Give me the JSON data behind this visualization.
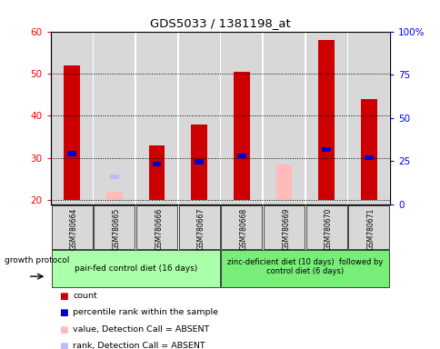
{
  "title": "GDS5033 / 1381198_at",
  "samples": [
    "GSM780664",
    "GSM780665",
    "GSM780666",
    "GSM780667",
    "GSM780668",
    "GSM780669",
    "GSM780670",
    "GSM780671"
  ],
  "count_values": [
    52,
    null,
    33,
    38,
    50.5,
    null,
    58,
    44
  ],
  "count_bottom": [
    20,
    20,
    20,
    20,
    20,
    20,
    20,
    20
  ],
  "percentile_values": [
    31,
    null,
    28.5,
    29,
    30.5,
    null,
    32,
    30
  ],
  "absent_value_values": [
    null,
    22,
    null,
    null,
    null,
    28.5,
    null,
    null
  ],
  "absent_value_bottom": [
    null,
    20,
    null,
    null,
    null,
    20,
    null,
    null
  ],
  "absent_rank_values": [
    null,
    25.5,
    null,
    null,
    null,
    null,
    null,
    null
  ],
  "ylim_left": [
    19,
    60
  ],
  "ylim_right": [
    0,
    100
  ],
  "yticks_left": [
    20,
    30,
    40,
    50,
    60
  ],
  "yticks_right": [
    0,
    25,
    50,
    75,
    100
  ],
  "ytick_labels_right": [
    "0",
    "25",
    "50",
    "75",
    "100%"
  ],
  "group1_label": "pair-fed control diet (16 days)",
  "group2_label": "zinc-deficient diet (10 days)  followed by\ncontrol diet (6 days)",
  "group_protocol_label": "growth protocol",
  "group1_indices": [
    0,
    1,
    2,
    3
  ],
  "group2_indices": [
    4,
    5,
    6,
    7
  ],
  "group1_color": "#aaffaa",
  "group2_color": "#77ee77",
  "bar_bg_color": "#d8d8d8",
  "count_color": "#cc0000",
  "percentile_color": "#0000cc",
  "absent_value_color": "#ffbbbb",
  "absent_rank_color": "#bbbbff",
  "bar_width": 0.38,
  "legend_items": [
    "count",
    "percentile rank within the sample",
    "value, Detection Call = ABSENT",
    "rank, Detection Call = ABSENT"
  ],
  "legend_colors": [
    "#cc0000",
    "#0000cc",
    "#ffbbbb",
    "#bbbbff"
  ]
}
